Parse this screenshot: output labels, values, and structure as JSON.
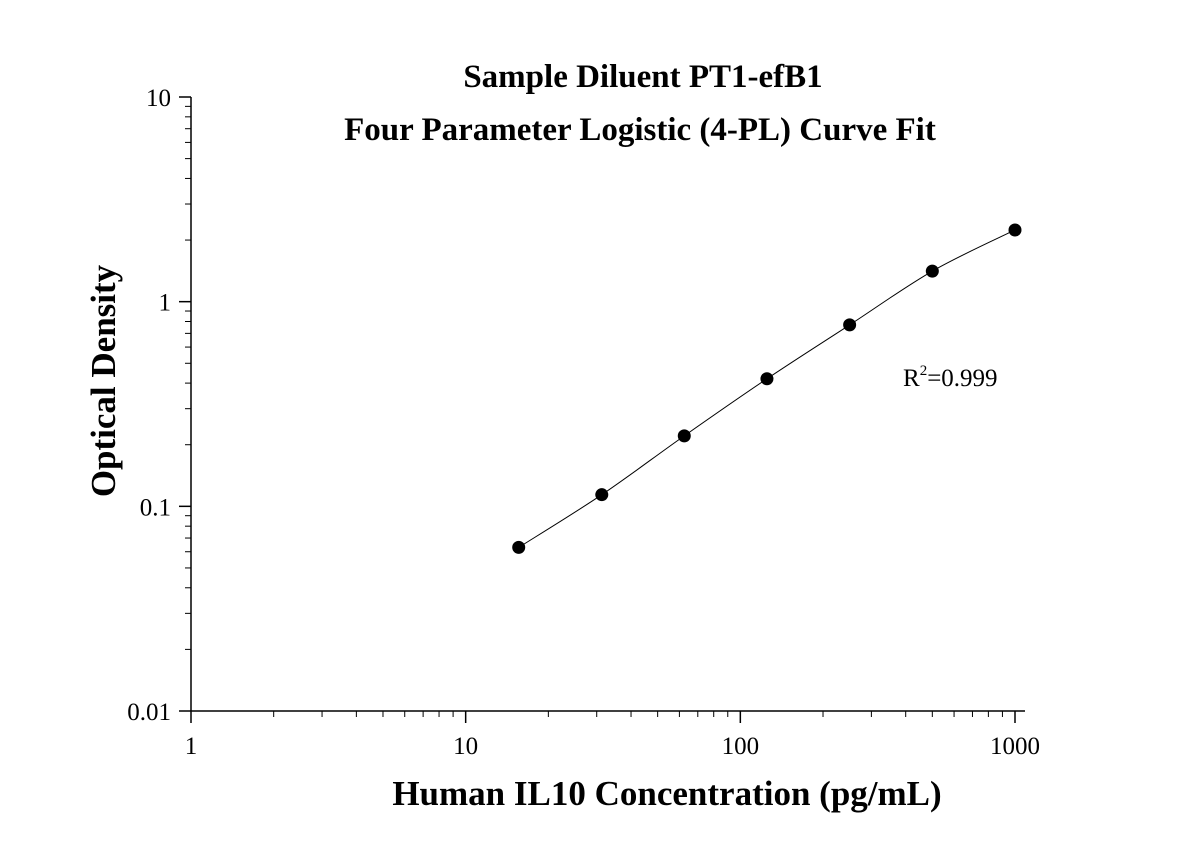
{
  "chart_data": {
    "type": "scatter",
    "title": "Sample Diluent PT1-efB1",
    "subtitle": "Four Parameter Logistic (4-PL) Curve Fit",
    "xlabel": "Human IL10 Concentration (pg/mL)",
    "ylabel": "Optical Density",
    "x_scale": "log",
    "y_scale": "log",
    "xlim": [
      1,
      1000
    ],
    "ylim": [
      0.01,
      10
    ],
    "x_ticks": [
      {
        "value": 1,
        "label": "1"
      },
      {
        "value": 10,
        "label": "10"
      },
      {
        "value": 100,
        "label": "100"
      },
      {
        "value": 1000,
        "label": "1000"
      }
    ],
    "y_ticks": [
      {
        "value": 0.01,
        "label": "0.01"
      },
      {
        "value": 0.1,
        "label": "0.1"
      },
      {
        "value": 1,
        "label": "1"
      },
      {
        "value": 10,
        "label": "10"
      }
    ],
    "grid": false,
    "series": [
      {
        "x": [
          15.6,
          31.3,
          62.5,
          125,
          250,
          500,
          1000
        ],
        "y": [
          0.063,
          0.114,
          0.221,
          0.42,
          0.77,
          1.41,
          2.24
        ],
        "marker": "filled-circle",
        "color": "#000000",
        "fit": "4-PL curve"
      }
    ],
    "annotation": {
      "base": "R",
      "superscript": "2",
      "rest": "=0.999"
    }
  }
}
